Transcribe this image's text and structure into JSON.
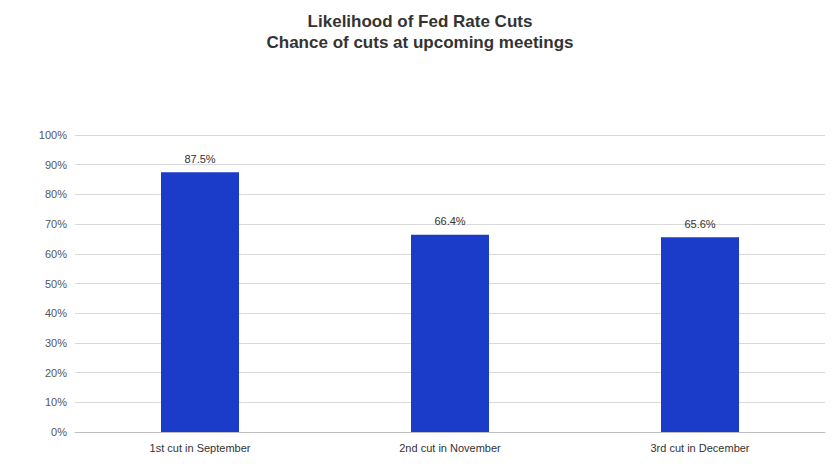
{
  "chart_data": {
    "type": "bar",
    "title": "Likelihood of Fed Rate Cuts",
    "subtitle": "Chance of cuts at upcoming meetings",
    "categories": [
      "1st cut in September",
      "2nd cut in November",
      "3rd cut in December"
    ],
    "values": [
      87.5,
      66.4,
      65.6
    ],
    "value_labels": [
      "87.5%",
      "66.4%",
      "65.6%"
    ],
    "color": "#1a3cc8",
    "ylim": [
      0,
      100
    ],
    "yticks": [
      {
        "value": 0,
        "label": "0%"
      },
      {
        "value": 10,
        "label": "10%"
      },
      {
        "value": 20,
        "label": "20%"
      },
      {
        "value": 30,
        "label": "30%"
      },
      {
        "value": 40,
        "label": "40%"
      },
      {
        "value": 50,
        "label": "50%"
      },
      {
        "value": 60,
        "label": "60%"
      },
      {
        "value": 70,
        "label": "70%"
      },
      {
        "value": 80,
        "label": "80%"
      },
      {
        "value": 90,
        "label": "90%"
      },
      {
        "value": 100,
        "label": "100%"
      }
    ],
    "grid": true,
    "data_labels": true
  }
}
